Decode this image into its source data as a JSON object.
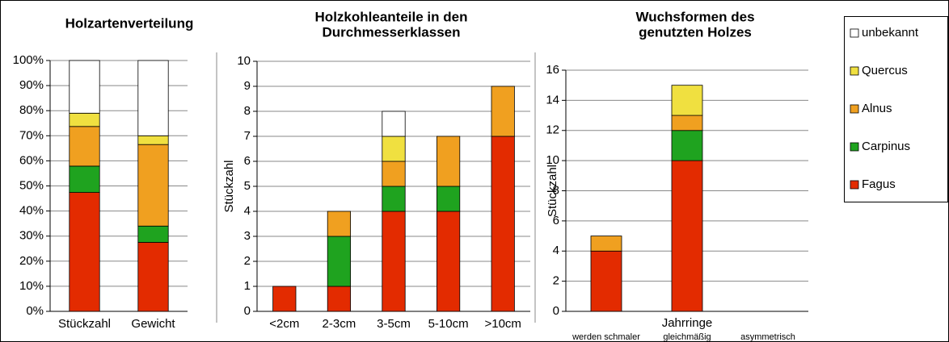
{
  "chart_data": [
    {
      "type": "bar",
      "stacked": true,
      "title": [
        "Holzartenverteilung"
      ],
      "categories": [
        "Stückzahl",
        "Gewicht"
      ],
      "series": [
        {
          "name": "Fagus",
          "color": "#e32b00",
          "values": [
            47.4,
            27.5
          ]
        },
        {
          "name": "Carpinus",
          "color": "#1fa31f",
          "values": [
            10.5,
            6.5
          ]
        },
        {
          "name": "Alnus",
          "color": "#f0a020",
          "values": [
            15.8,
            32.5
          ]
        },
        {
          "name": "Quercus",
          "color": "#f0e040",
          "values": [
            5.3,
            3.5
          ]
        },
        {
          "name": "unbekannt",
          "color": "#ffffff",
          "values": [
            21,
            30
          ]
        }
      ],
      "ylim": [
        0,
        100
      ],
      "yticks": [
        {
          "value": 0,
          "label": "0%"
        },
        {
          "value": 10,
          "label": "10%"
        },
        {
          "value": 20,
          "label": "20%"
        },
        {
          "value": 30,
          "label": "30%"
        },
        {
          "value": 40,
          "label": "40%"
        },
        {
          "value": 50,
          "label": "50%"
        },
        {
          "value": 60,
          "label": "60%"
        },
        {
          "value": 70,
          "label": "70%"
        },
        {
          "value": 80,
          "label": "80%"
        },
        {
          "value": 90,
          "label": "90%"
        },
        {
          "value": 100,
          "label": "100%"
        }
      ],
      "grid": true
    },
    {
      "type": "bar",
      "stacked": true,
      "title": [
        "Holzkohleanteile in den",
        "Durchmesserklassen"
      ],
      "y_label": "Stückzahl",
      "categories": [
        "<2cm",
        "2-3cm",
        "3-5cm",
        "5-10cm",
        ">10cm"
      ],
      "series": [
        {
          "name": "Fagus",
          "color": "#e32b00",
          "values": [
            1,
            1,
            4,
            4,
            7
          ]
        },
        {
          "name": "Carpinus",
          "color": "#1fa31f",
          "values": [
            0,
            2,
            1,
            1,
            0
          ]
        },
        {
          "name": "Alnus",
          "color": "#f0a020",
          "values": [
            0,
            1,
            1,
            2,
            2
          ]
        },
        {
          "name": "Quercus",
          "color": "#f0e040",
          "values": [
            0,
            0,
            1,
            0,
            0
          ]
        },
        {
          "name": "unbekannt",
          "color": "#ffffff",
          "values": [
            0,
            0,
            1,
            0,
            0
          ]
        }
      ],
      "ylim": [
        0,
        10
      ],
      "yticks": [
        0,
        1,
        2,
        3,
        4,
        5,
        6,
        7,
        8,
        9,
        10
      ],
      "grid": true
    },
    {
      "type": "bar",
      "stacked": true,
      "title": [
        "Wuchsformen des",
        "genutzten Holzes"
      ],
      "y_label": "Stückzahl",
      "x_label": "Jahrringe",
      "categories": [
        "werden schmaler",
        "gleichmäßig",
        "asymmetrisch"
      ],
      "series": [
        {
          "name": "Fagus",
          "color": "#e32b00",
          "values": [
            4,
            10,
            0
          ]
        },
        {
          "name": "Carpinus",
          "color": "#1fa31f",
          "values": [
            0,
            2,
            0
          ]
        },
        {
          "name": "Alnus",
          "color": "#f0a020",
          "values": [
            1,
            1,
            0
          ]
        },
        {
          "name": "Quercus",
          "color": "#f0e040",
          "values": [
            0,
            2,
            0
          ]
        },
        {
          "name": "unbekannt",
          "color": "#ffffff",
          "values": [
            0,
            0,
            0
          ]
        }
      ],
      "ylim": [
        0,
        16
      ],
      "yticks": [
        0,
        2,
        4,
        6,
        8,
        10,
        12,
        14,
        16
      ],
      "grid": true
    }
  ]
}
